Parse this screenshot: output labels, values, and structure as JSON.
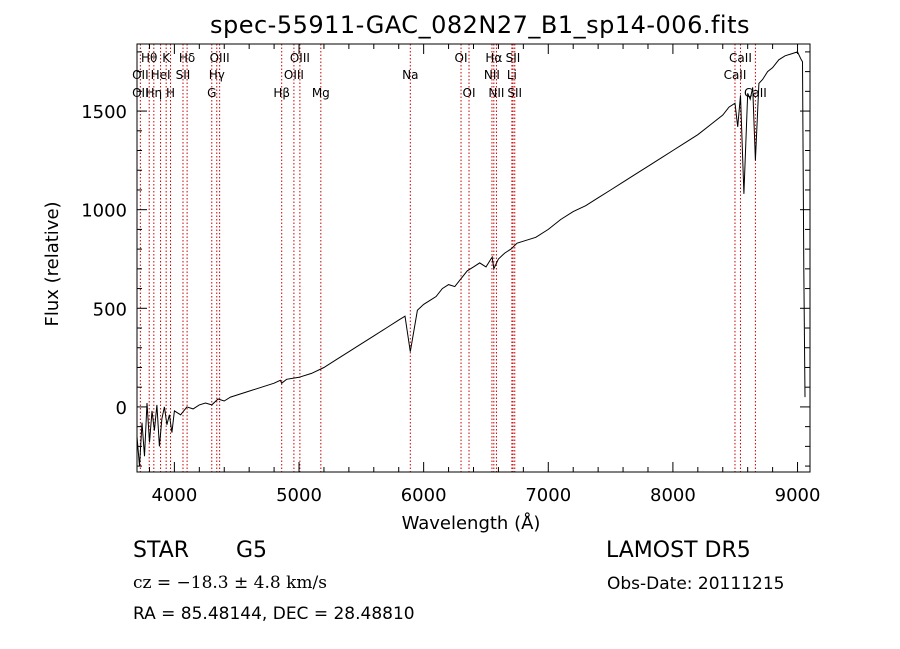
{
  "chart_data": {
    "type": "line",
    "title": "spec-55911-GAC_082N27_B1_sp14-006.fits",
    "xlabel": "Wavelength (Å)",
    "ylabel": "Flux (relative)",
    "xlim": [
      3700,
      9100
    ],
    "ylim": [
      -330,
      1840
    ],
    "xticks": [
      4000,
      5000,
      6000,
      7000,
      8000,
      9000
    ],
    "yticks": [
      0,
      500,
      1000,
      1500
    ],
    "grid": false,
    "line_color": "#000000",
    "marker_color": "#cc0000",
    "spectrum": {
      "name": "",
      "x": [
        3700,
        3720,
        3740,
        3760,
        3780,
        3800,
        3820,
        3840,
        3860,
        3880,
        3900,
        3920,
        3940,
        3960,
        3980,
        4000,
        4050,
        4100,
        4150,
        4200,
        4250,
        4300,
        4350,
        4400,
        4450,
        4500,
        4600,
        4700,
        4800,
        4850,
        4861,
        4900,
        5000,
        5100,
        5200,
        5300,
        5400,
        5500,
        5600,
        5700,
        5800,
        5850,
        5893,
        5950,
        6000,
        6050,
        6100,
        6150,
        6200,
        6250,
        6300,
        6350,
        6400,
        6450,
        6500,
        6550,
        6563,
        6600,
        6650,
        6700,
        6750,
        6800,
        6900,
        7000,
        7100,
        7200,
        7300,
        7400,
        7500,
        7600,
        7700,
        7800,
        7900,
        8000,
        8100,
        8200,
        8300,
        8400,
        8450,
        8498,
        8520,
        8542,
        8570,
        8600,
        8620,
        8640,
        8662,
        8690,
        8720,
        8760,
        8800,
        8850,
        8900,
        8950,
        9000,
        9030,
        9040,
        9050,
        9060
      ],
      "y": [
        -150,
        -300,
        -80,
        -250,
        20,
        -180,
        -20,
        -120,
        10,
        -200,
        -60,
        0,
        -90,
        -40,
        -130,
        -20,
        -40,
        0,
        -10,
        10,
        20,
        10,
        40,
        30,
        50,
        60,
        80,
        100,
        120,
        135,
        120,
        140,
        150,
        170,
        200,
        240,
        280,
        320,
        360,
        400,
        440,
        460,
        280,
        490,
        520,
        540,
        560,
        600,
        620,
        610,
        650,
        690,
        710,
        730,
        710,
        760,
        700,
        750,
        780,
        800,
        830,
        840,
        860,
        900,
        950,
        990,
        1020,
        1060,
        1100,
        1140,
        1180,
        1220,
        1260,
        1300,
        1340,
        1380,
        1430,
        1480,
        1520,
        1540,
        1420,
        1580,
        1080,
        1590,
        1560,
        1620,
        1250,
        1640,
        1660,
        1700,
        1720,
        1760,
        1780,
        1790,
        1800,
        1760,
        1750,
        700,
        50
      ]
    },
    "line_markers": [
      {
        "label": "Hθ",
        "x": 3798,
        "row": 1
      },
      {
        "label": "OII",
        "x": 3727,
        "row": 2
      },
      {
        "label": "OII",
        "x": 3727,
        "row": 3
      },
      {
        "label": "Hη",
        "x": 3835,
        "row": 3
      },
      {
        "label": "K",
        "x": 3934,
        "row": 1
      },
      {
        "label": "HeI",
        "x": 3889,
        "row": 2
      },
      {
        "label": "H",
        "x": 3969,
        "row": 3
      },
      {
        "label": "Hδ",
        "x": 4102,
        "row": 1
      },
      {
        "label": "SII",
        "x": 4069,
        "row": 2
      },
      {
        "label": "OIII",
        "x": 4363,
        "row": 1
      },
      {
        "label": "Hγ",
        "x": 4340,
        "row": 2
      },
      {
        "label": "G",
        "x": 4300,
        "row": 3
      },
      {
        "label": "OIII",
        "x": 5007,
        "row": 1
      },
      {
        "label": "OIII",
        "x": 4959,
        "row": 2
      },
      {
        "label": "Hβ",
        "x": 4861,
        "row": 3
      },
      {
        "label": "Mg",
        "x": 5175,
        "row": 3
      },
      {
        "label": "Na",
        "x": 5893,
        "row": 2
      },
      {
        "label": "OI",
        "x": 6300,
        "row": 1
      },
      {
        "label": "OI",
        "x": 6364,
        "row": 3
      },
      {
        "label": "Hα",
        "x": 6563,
        "row": 1
      },
      {
        "label": "NII",
        "x": 6548,
        "row": 2
      },
      {
        "label": "NII",
        "x": 6584,
        "row": 3
      },
      {
        "label": "SII",
        "x": 6717,
        "row": 1
      },
      {
        "label": "Li",
        "x": 6708,
        "row": 2
      },
      {
        "label": "SII",
        "x": 6731,
        "row": 3
      },
      {
        "label": "CaII",
        "x": 8542,
        "row": 1
      },
      {
        "label": "CaII",
        "x": 8498,
        "row": 2
      },
      {
        "label": "CaII",
        "x": 8662,
        "row": 3
      }
    ]
  },
  "info": {
    "class": "STAR",
    "subclass": "G5",
    "survey": "LAMOST DR5",
    "cz": "cz = −18.3 ± 4.8 km/s",
    "obs_date": "Obs-Date: 20111215",
    "radec": "RA =  85.48144, DEC =  28.48810"
  }
}
